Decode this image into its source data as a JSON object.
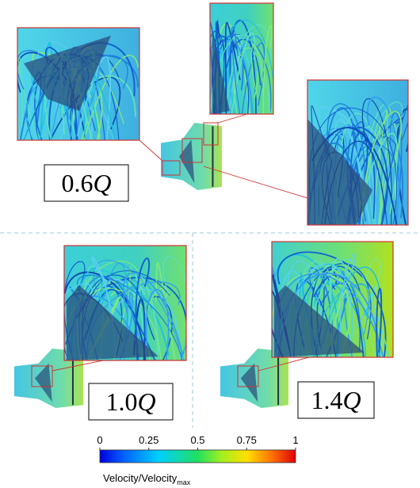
{
  "panels": [
    {
      "label_number": "0.6",
      "label_symbol": "Q"
    },
    {
      "label_number": "1.0",
      "label_symbol": "Q"
    },
    {
      "label_number": "1.4",
      "label_symbol": "Q"
    }
  ],
  "colorbar": {
    "ticks": [
      0,
      0.25,
      0.5,
      0.75,
      1
    ],
    "label": "Velocity/Velocity",
    "label_subscript": "max"
  }
}
